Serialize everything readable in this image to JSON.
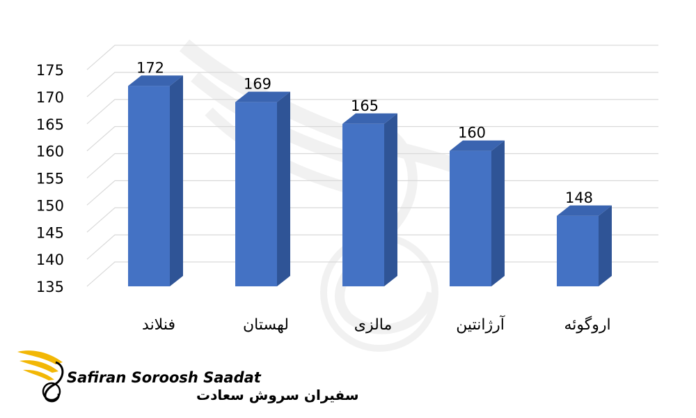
{
  "chart_data": {
    "type": "bar",
    "categories": [
      "فنلاند",
      "لهستان",
      "مالزی",
      "آرژانتین",
      "اروگوئه"
    ],
    "values": [
      172,
      169,
      165,
      160,
      148
    ],
    "ylim": [
      135,
      175
    ],
    "yticks": [
      135,
      140,
      145,
      150,
      155,
      160,
      165,
      170,
      175
    ],
    "title": "",
    "xlabel": "",
    "ylabel": "",
    "grid": true,
    "bar_color": "#4472C4",
    "style": "3d-column"
  },
  "watermark": {
    "brand_en": "Safiran Soroosh Saadat",
    "brand_fa": "سفیران سروش سعادت",
    "logo_color": "#F2B705"
  }
}
